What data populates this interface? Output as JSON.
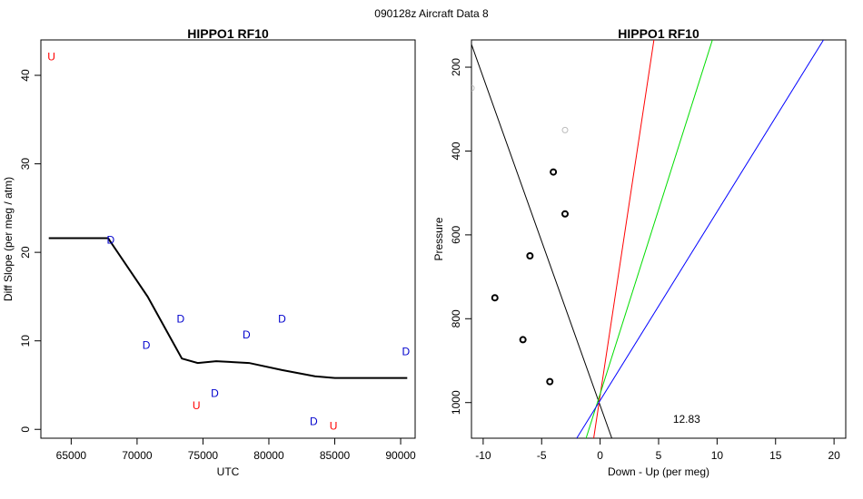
{
  "figure": {
    "suptitle": "090128z   Aircraft Data 8"
  },
  "chart_data": [
    {
      "type": "line",
      "title": "HIPPO1 RF10",
      "xlabel": "UTC",
      "ylabel": "Diff Slope (per meg / atm)",
      "xlim": [
        62700,
        91100
      ],
      "ylim": [
        -1,
        44
      ],
      "xticks": [
        65000,
        70000,
        75000,
        80000,
        85000,
        90000
      ],
      "yticks": [
        0,
        10,
        20,
        30,
        40
      ],
      "line": {
        "color": "#000000",
        "x": [
          63300,
          67800,
          70800,
          73400,
          74600,
          76000,
          78500,
          81000,
          83500,
          85000,
          87500,
          90500
        ],
        "y": [
          21.6,
          21.6,
          15.0,
          8.0,
          7.5,
          7.7,
          7.5,
          6.7,
          6.0,
          5.8,
          5.8,
          5.8
        ]
      },
      "markers": [
        {
          "x": 63500,
          "y": 42.2,
          "label": "U",
          "color": "#ff0000"
        },
        {
          "x": 68000,
          "y": 21.5,
          "label": "D",
          "color": "#0000cd"
        },
        {
          "x": 70700,
          "y": 9.6,
          "label": "D",
          "color": "#0000cd"
        },
        {
          "x": 73300,
          "y": 12.6,
          "label": "D",
          "color": "#0000cd"
        },
        {
          "x": 74500,
          "y": 2.8,
          "label": "U",
          "color": "#ff0000"
        },
        {
          "x": 75900,
          "y": 4.2,
          "label": "D",
          "color": "#0000cd"
        },
        {
          "x": 78300,
          "y": 10.8,
          "label": "D",
          "color": "#0000cd"
        },
        {
          "x": 81000,
          "y": 12.6,
          "label": "D",
          "color": "#0000cd"
        },
        {
          "x": 83400,
          "y": 1.0,
          "label": "D",
          "color": "#0000cd"
        },
        {
          "x": 84900,
          "y": 0.5,
          "label": "U",
          "color": "#ff0000"
        },
        {
          "x": 90400,
          "y": 8.9,
          "label": "D",
          "color": "#0000cd"
        }
      ]
    },
    {
      "type": "scatter",
      "title": "HIPPO1 RF10",
      "xlabel": "Down - Up (per meg)",
      "ylabel": "Pressure",
      "xlim": [
        -11,
        21
      ],
      "ylim": [
        1085,
        135
      ],
      "y_reversed": true,
      "xticks": [
        -10,
        -5,
        0,
        5,
        10,
        15,
        20
      ],
      "yticks": [
        200,
        400,
        600,
        800,
        1000
      ],
      "points": [
        {
          "x": -11,
          "y": 250,
          "color": "#bbbbbb"
        },
        {
          "x": -3,
          "y": 350,
          "color": "#bbbbbb"
        },
        {
          "x": -4,
          "y": 450,
          "color": "#000000"
        },
        {
          "x": -3,
          "y": 550,
          "color": "#000000"
        },
        {
          "x": -6,
          "y": 650,
          "color": "#000000"
        },
        {
          "x": -9,
          "y": 750,
          "color": "#000000"
        },
        {
          "x": -6.6,
          "y": 850,
          "color": "#000000"
        },
        {
          "x": -4.3,
          "y": 950,
          "color": "#000000"
        }
      ],
      "lines": [
        {
          "color": "#000000",
          "x": [
            -11.2,
            1.0
          ],
          "y": [
            130,
            1085
          ]
        },
        {
          "color": "#ff0000",
          "x": [
            -0.55,
            4.6
          ],
          "y": [
            1085,
            135
          ]
        },
        {
          "color": "#00dd00",
          "x": [
            -1.2,
            9.6
          ],
          "y": [
            1085,
            135
          ]
        },
        {
          "color": "#0000ff",
          "x": [
            -2.0,
            19.1
          ],
          "y": [
            1085,
            135
          ]
        }
      ],
      "annotation": {
        "text": "12.83",
        "x": 2.5,
        "y": 1040
      }
    }
  ]
}
